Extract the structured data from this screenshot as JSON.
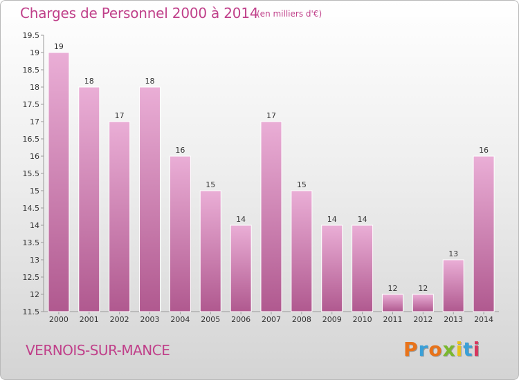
{
  "header": {
    "title": "Charges de Personnel 2000 à 2014",
    "subtitle": "(en milliers d'€)"
  },
  "footer": {
    "place": "VERNOIS-SUR-MANCE",
    "logo": "Proxiti"
  },
  "colors": {
    "accent": "#c0408a",
    "bar_light": "#eaaed6",
    "bar_dark": "#b0598f",
    "logo_letters": [
      "#e8731a",
      "#3aa0d8",
      "#e8731a",
      "#7ab82e",
      "#e8c21a",
      "#3aa0d8",
      "#d6365e"
    ]
  },
  "chart_data": {
    "type": "bar",
    "title": "Charges de Personnel 2000 à 2014",
    "subtitle": "(en milliers d'€)",
    "categories": [
      "2000",
      "2001",
      "2002",
      "2003",
      "2004",
      "2005",
      "2006",
      "2007",
      "2008",
      "2009",
      "2010",
      "2011",
      "2012",
      "2013",
      "2014"
    ],
    "values": [
      19,
      18,
      17,
      18,
      16,
      15,
      14,
      17,
      15,
      14,
      14,
      12,
      12,
      13,
      16
    ],
    "ylim": [
      11.5,
      19.5
    ],
    "yticks": [
      "11.5",
      "12",
      "12.5",
      "13",
      "13.5",
      "14",
      "14.5",
      "15",
      "15.5",
      "16",
      "16.5",
      "17",
      "17.5",
      "18",
      "18.5",
      "19",
      "19.5"
    ],
    "grid": false,
    "data_labels": true
  }
}
